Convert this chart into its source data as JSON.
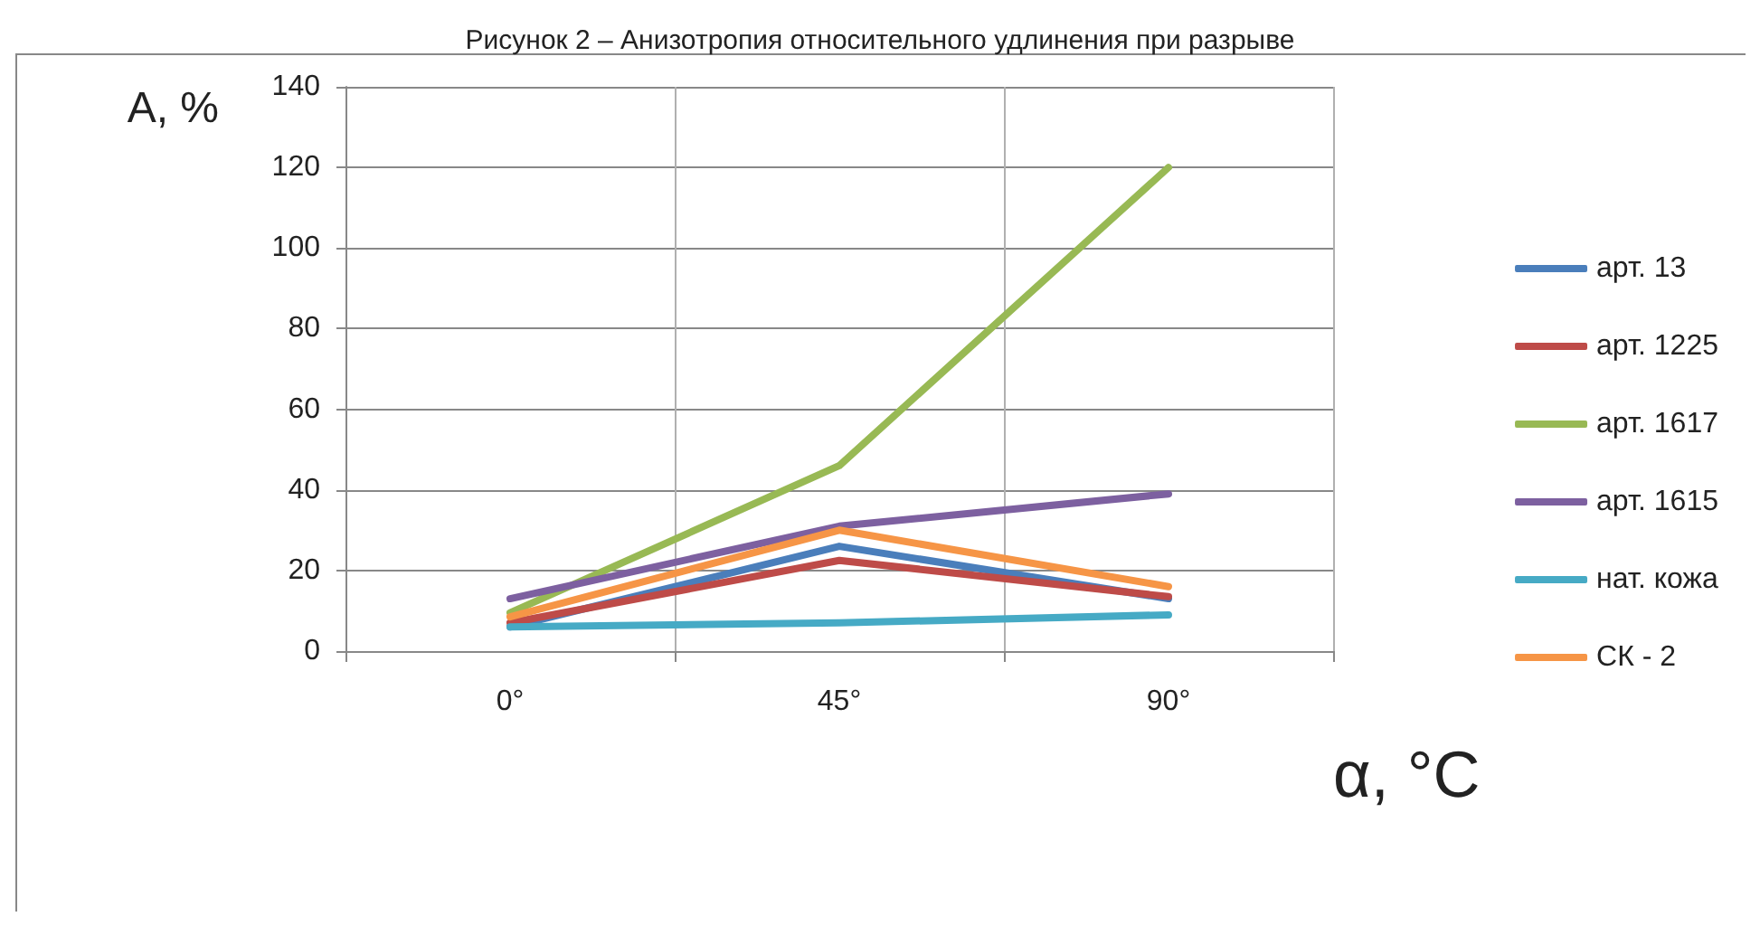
{
  "chart_data": {
    "type": "line",
    "title": "Рисунок 2 – Анизотропия относительного удлинения при разрыве",
    "ylabel": "А, %",
    "xlabel": "α, °С",
    "categories": [
      "0°",
      "45°",
      "90°"
    ],
    "series": [
      {
        "name": "арт. 13",
        "color": "#4a7ebb",
        "values": [
          6,
          26,
          13
        ]
      },
      {
        "name": "арт. 1225",
        "color": "#be4b48",
        "values": [
          7,
          22.5,
          13.5
        ]
      },
      {
        "name": "арт. 1617",
        "color": "#98b954",
        "values": [
          9.5,
          46,
          120
        ]
      },
      {
        "name": "арт. 1615",
        "color": "#7d60a0",
        "values": [
          13,
          31,
          39
        ]
      },
      {
        "name": "нат. кожа",
        "color": "#46aac5",
        "values": [
          6,
          7,
          9
        ]
      },
      {
        "name": "СК - 2",
        "color": "#f69546",
        "values": [
          8.5,
          30,
          16
        ]
      }
    ],
    "ylim": [
      0,
      140
    ],
    "yticks": [
      0,
      20,
      40,
      60,
      80,
      100,
      120,
      140
    ],
    "grid": true,
    "legend": "right",
    "marker": "none",
    "line_style": "solid"
  }
}
